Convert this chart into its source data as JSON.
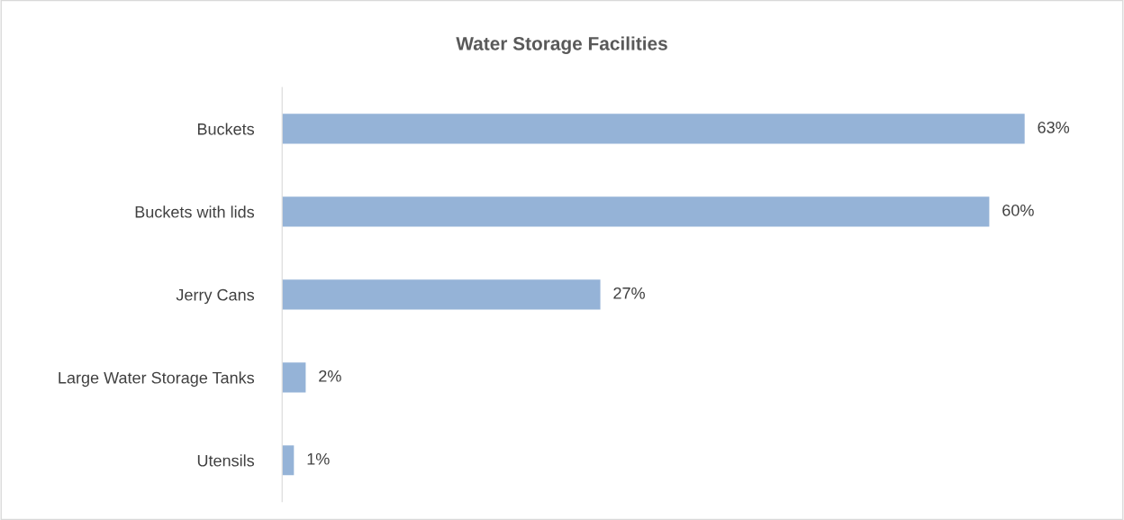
{
  "chart_data": {
    "type": "bar",
    "orientation": "horizontal",
    "title": "Water Storage Facilities",
    "categories": [
      "Buckets",
      "Buckets with lids",
      "Jerry Cans",
      "Large Water Storage Tanks",
      "Utensils"
    ],
    "values": [
      63,
      60,
      27,
      2,
      1
    ],
    "value_labels": [
      "63%",
      "60%",
      "27%",
      "2%",
      "1%"
    ],
    "color": "#95b3d7",
    "tick_labels": "y",
    "grid": false,
    "legend": false
  }
}
